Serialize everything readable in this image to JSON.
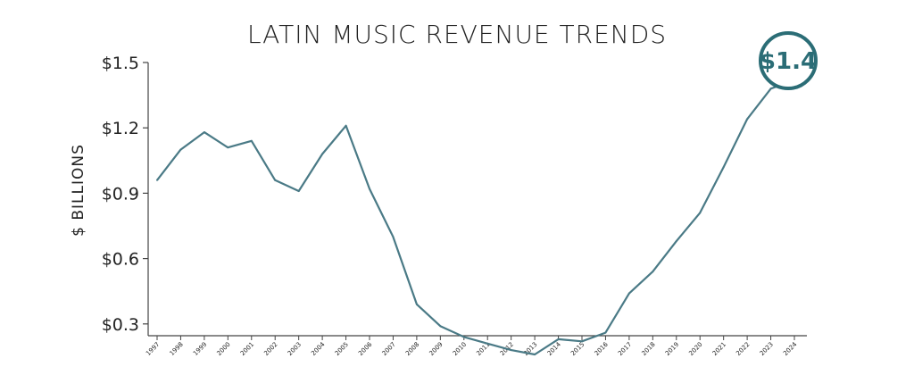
{
  "chart_data": {
    "type": "line",
    "title": "LATIN MUSIC REVENUE TRENDS",
    "ylabel": "$ BILLIONS",
    "xlabel": "",
    "x": [
      "1997",
      "1998",
      "1999",
      "2000",
      "2001",
      "2002",
      "2003",
      "2004",
      "2005",
      "2006",
      "2007",
      "2008",
      "2009",
      "2010",
      "2011",
      "2012",
      "2013",
      "2014",
      "2015",
      "2016",
      "2017",
      "2018",
      "2019",
      "2020",
      "2021",
      "2022",
      "2023",
      "2024"
    ],
    "y_ticks": [
      {
        "value": 0.3,
        "label": "$0.3"
      },
      {
        "value": 0.6,
        "label": "$0.6"
      },
      {
        "value": 0.9,
        "label": "$0.9"
      },
      {
        "value": 1.2,
        "label": "$1.2"
      },
      {
        "value": 1.5,
        "label": "$1.5"
      }
    ],
    "ylim": [
      0,
      1.5
    ],
    "grid": false,
    "series": [
      {
        "values": [
          0.96,
          1.1,
          1.18,
          1.11,
          1.14,
          0.96,
          0.91,
          1.08,
          1.21,
          0.92,
          0.7,
          0.39,
          0.29,
          0.24,
          0.21,
          0.18,
          0.16,
          0.23,
          0.22,
          0.26,
          0.44,
          0.54,
          0.68,
          0.81,
          1.02,
          1.24,
          1.38,
          1.42
        ]
      }
    ],
    "callout": {
      "label": "$1.4",
      "x": "2024",
      "value": 1.42
    },
    "colors": {
      "line": "#4a7a86",
      "callout_ring": "#2b6d76",
      "axis": "#444444"
    }
  }
}
